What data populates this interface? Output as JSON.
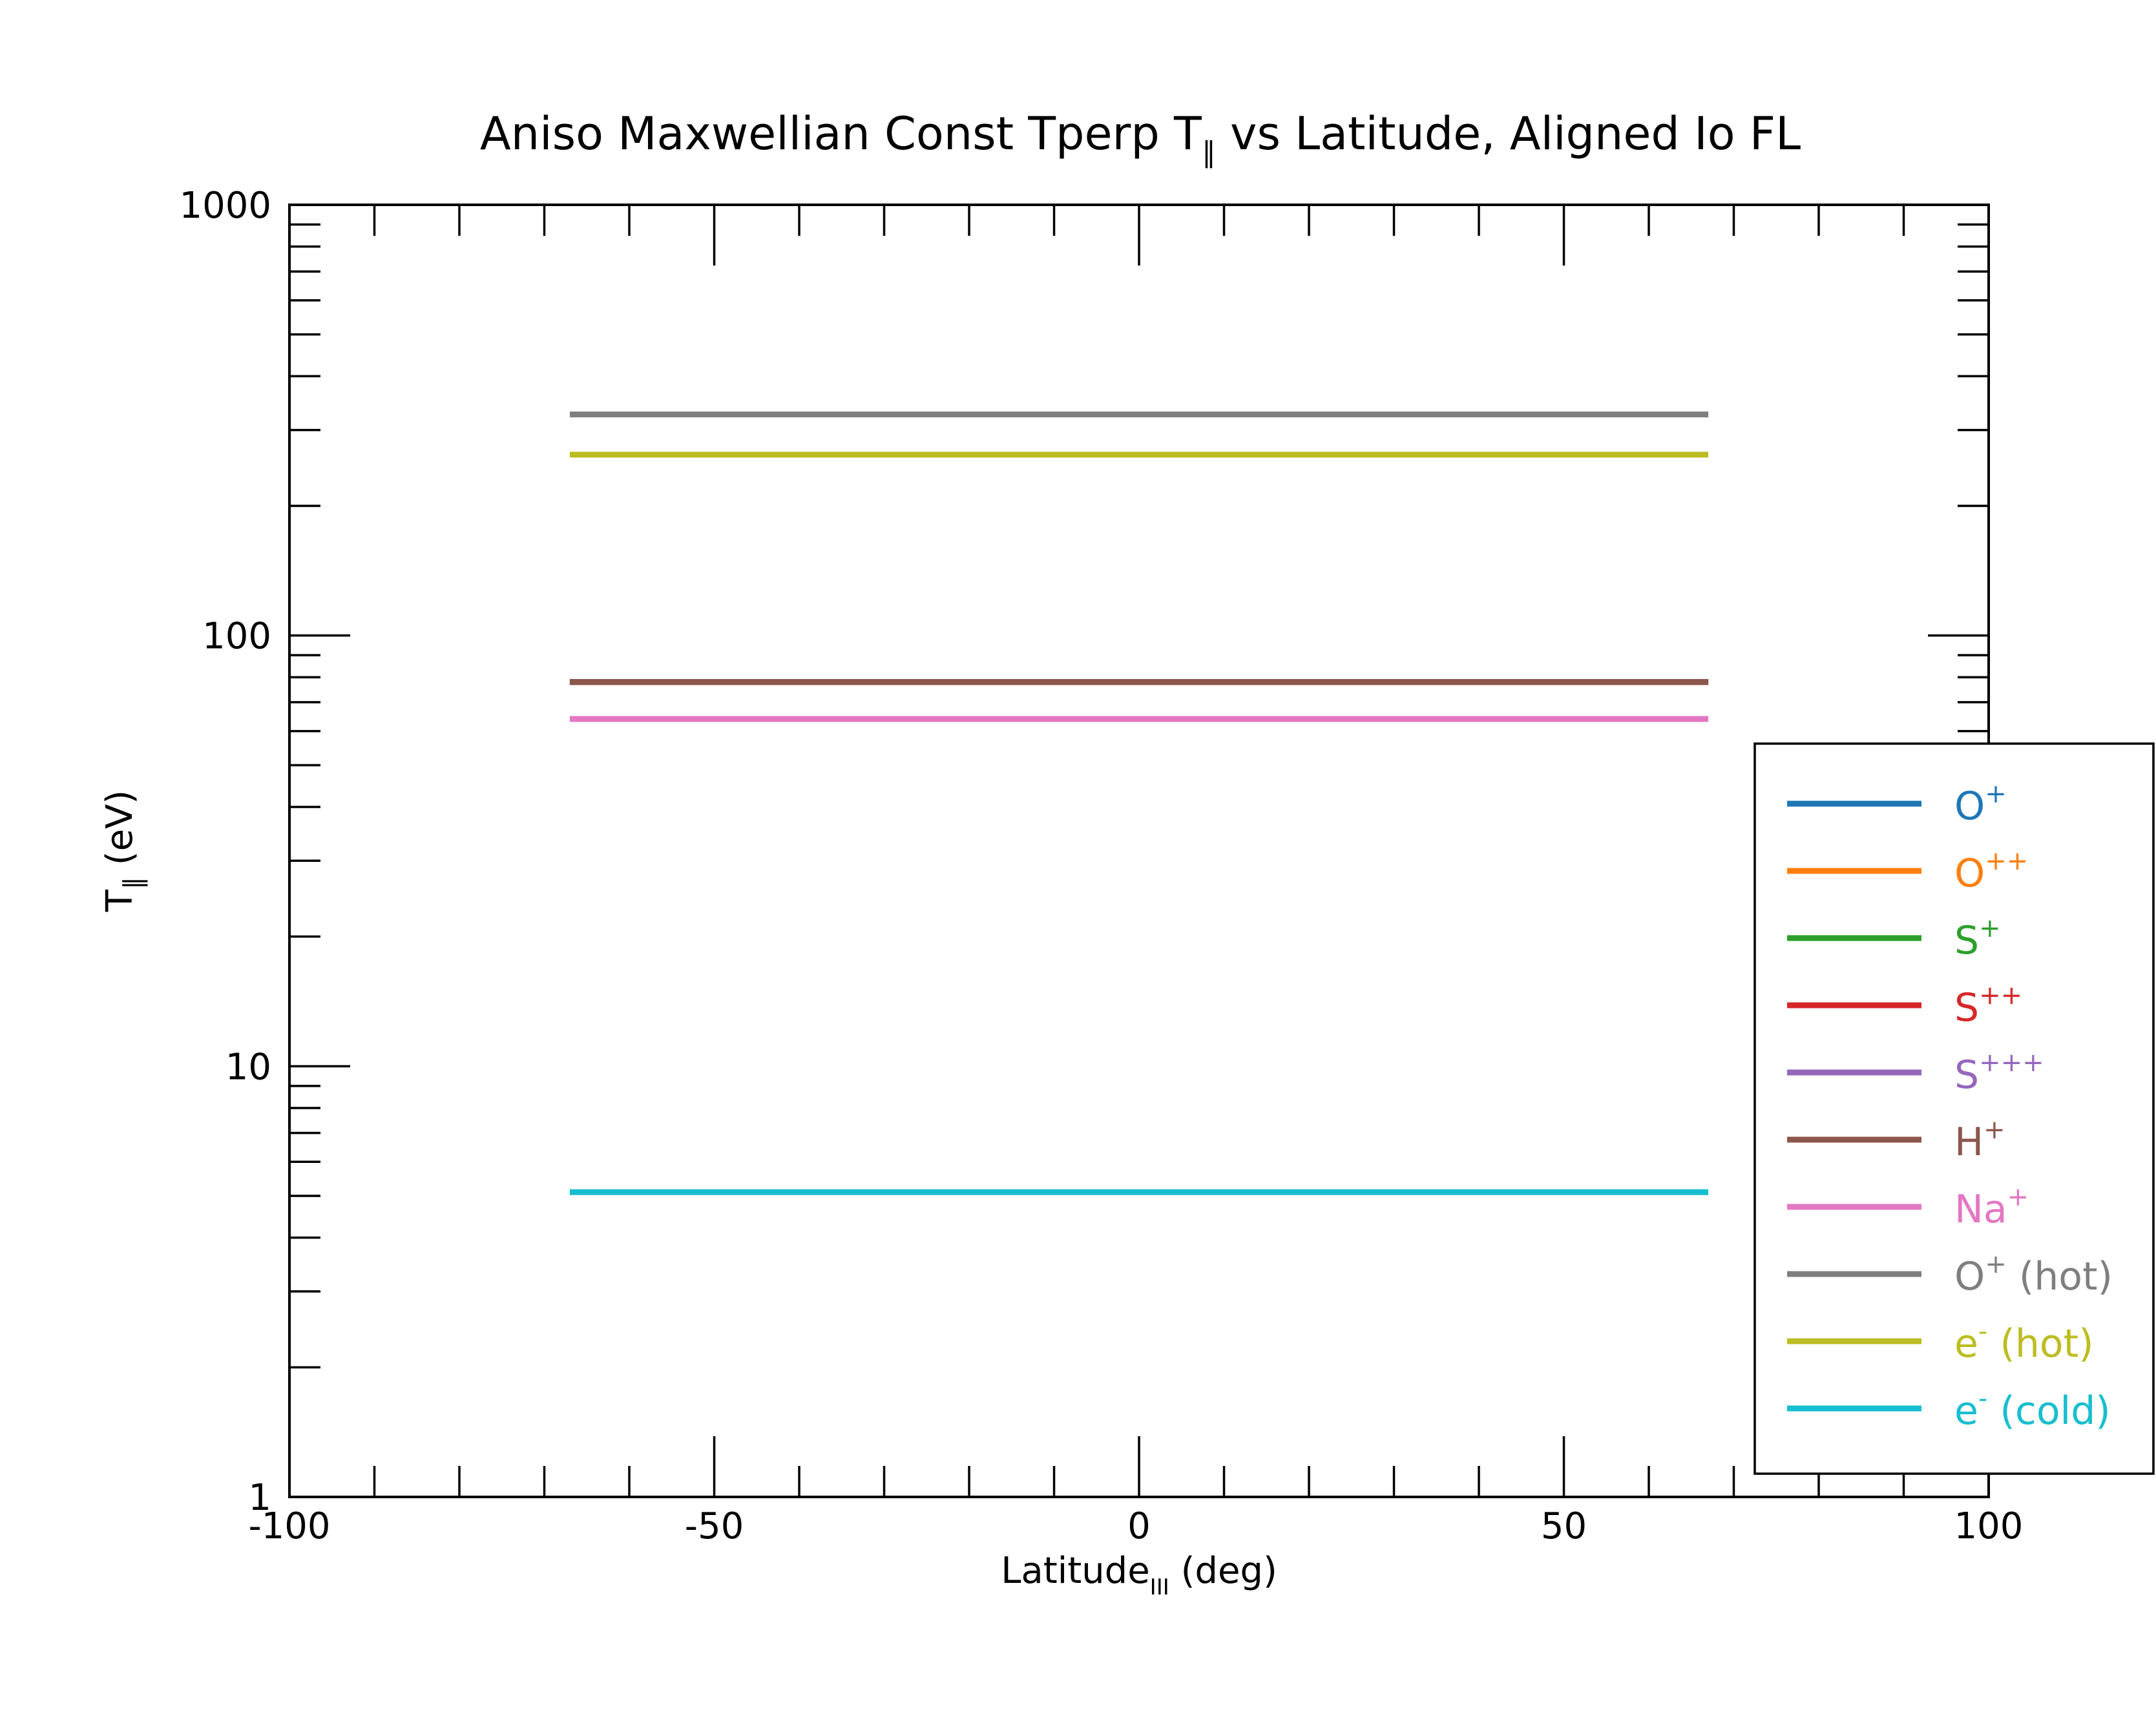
{
  "chart_data": {
    "type": "line",
    "title": "Aniso Maxwellian Const Tperp T",
    "title_sub": "∥",
    "title_tail": " vs Latitude, Aligned Io FL",
    "xlabel": "Latitude",
    "xlabel_sub": "III",
    "xlabel_tail": " (deg)",
    "ylabel": "T",
    "ylabel_sub": "∥",
    "ylabel_tail": " (eV)",
    "xlim": [
      -100,
      100
    ],
    "ylim": [
      1,
      1000
    ],
    "yscale": "log",
    "x_ticks": [
      -100,
      -50,
      0,
      50,
      100
    ],
    "x_tick_labels": [
      "-100",
      "-50",
      "0",
      "50",
      "100"
    ],
    "y_ticks": [
      1,
      10,
      100,
      1000
    ],
    "y_tick_labels": [
      "1",
      "10",
      "100",
      "1000"
    ],
    "grid": false,
    "legend_position": "right",
    "series": [
      {
        "name": "O",
        "sup": "+",
        "tail": "",
        "color": "#1f77b4",
        "x": [
          -67,
          67
        ],
        "y": [
          78,
          78
        ]
      },
      {
        "name": "O",
        "sup": "++",
        "tail": "",
        "color": "#ff7f0e",
        "x": [
          -67,
          67
        ],
        "y": [
          78,
          78
        ]
      },
      {
        "name": "S",
        "sup": "+",
        "tail": "",
        "color": "#2ca02c",
        "x": [
          -67,
          67
        ],
        "y": [
          78,
          78
        ]
      },
      {
        "name": "S",
        "sup": "++",
        "tail": "",
        "color": "#d62728",
        "x": [
          -67,
          67
        ],
        "y": [
          78,
          78
        ]
      },
      {
        "name": "S",
        "sup": "+++",
        "tail": "",
        "color": "#9467bd",
        "x": [
          -67,
          67
        ],
        "y": [
          78,
          78
        ]
      },
      {
        "name": "H",
        "sup": "+",
        "tail": "",
        "color": "#8c564b",
        "x": [
          -67,
          67
        ],
        "y": [
          78,
          78
        ]
      },
      {
        "name": "Na",
        "sup": "+",
        "tail": "",
        "color": "#e377c2",
        "x": [
          -67,
          67
        ],
        "y": [
          64,
          64
        ]
      },
      {
        "name": "O",
        "sup": "+",
        "tail": " (hot)",
        "color": "#7f7f7f",
        "x": [
          -67,
          67
        ],
        "y": [
          326,
          326
        ]
      },
      {
        "name": "e",
        "sup": "-",
        "tail": " (hot)",
        "color": "#bcbd22",
        "x": [
          -67,
          67
        ],
        "y": [
          263,
          263
        ]
      },
      {
        "name": "e",
        "sup": "-",
        "tail": " (cold)",
        "color": "#17becf",
        "x": [
          -67,
          67
        ],
        "y": [
          5.1,
          5.1
        ]
      }
    ]
  }
}
